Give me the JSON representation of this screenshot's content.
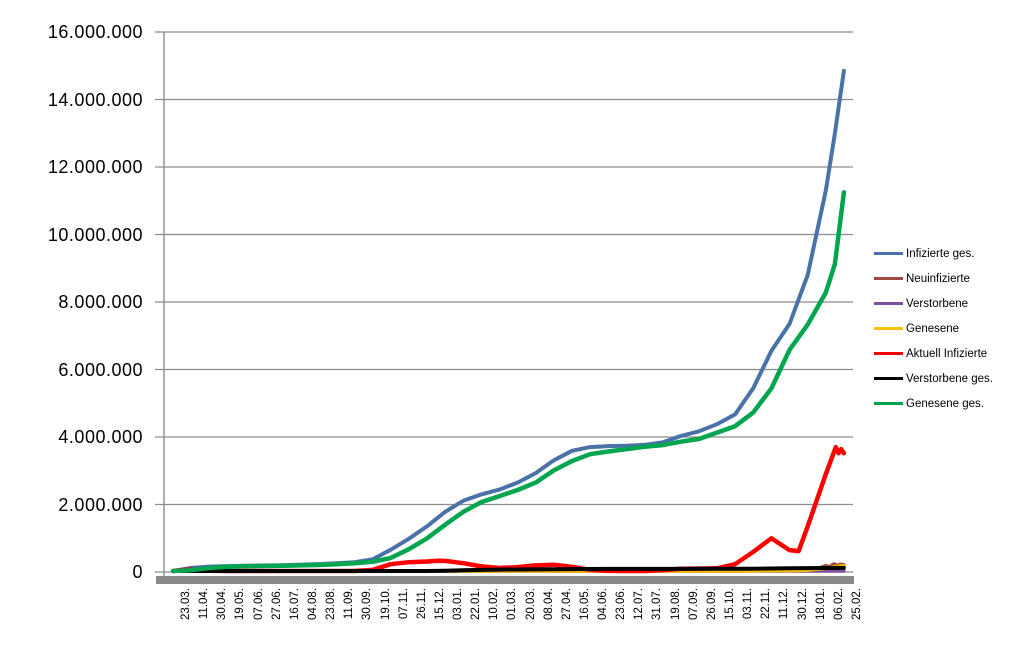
{
  "chart_data": {
    "type": "line",
    "title": "",
    "xlabel": "",
    "ylabel": "",
    "grid": true,
    "legend_position": "right",
    "ymax": 16000000,
    "ystep": 2000000,
    "y_tick_labels": [
      "16.000.000",
      "14.000.000",
      "12.000.000",
      "10.000.000",
      "8.000.000",
      "6.000.000",
      "4.000.000",
      "2.000.000",
      "0"
    ],
    "categories": [
      "23.03.",
      "11.04.",
      "30.04.",
      "19.05.",
      "07.06.",
      "27.06.",
      "16.07.",
      "04.08.",
      "23.08.",
      "11.09.",
      "30.09.",
      "19.10.",
      "07.11.",
      "26.11.",
      "15.12.",
      "03.01.",
      "22.01.",
      "10.02.",
      "01.03.",
      "20.03.",
      "08.04.",
      "27.04.",
      "16.05.",
      "04.06.",
      "23.06.",
      "12.07.",
      "31.07.",
      "19.08.",
      "07.09.",
      "26.09.",
      "15.10.",
      "03.11.",
      "22.11.",
      "11.12.",
      "30.12.",
      "18.01.",
      "06.02.",
      "25.02."
    ],
    "series": [
      {
        "name": "Infizierte ges.",
        "color": "#4A72A8",
        "points": [
          [
            0,
            29000
          ],
          [
            1,
            122000
          ],
          [
            2,
            161000
          ],
          [
            3,
            176000
          ],
          [
            4,
            185000
          ],
          [
            5,
            194000
          ],
          [
            6,
            201000
          ],
          [
            7,
            212000
          ],
          [
            8,
            233000
          ],
          [
            9,
            259000
          ],
          [
            10,
            290000
          ],
          [
            11,
            373000
          ],
          [
            12,
            658000
          ],
          [
            13,
            983000
          ],
          [
            14,
            1350000
          ],
          [
            15,
            1780000
          ],
          [
            16,
            2110000
          ],
          [
            17,
            2300000
          ],
          [
            18,
            2440000
          ],
          [
            19,
            2650000
          ],
          [
            20,
            2930000
          ],
          [
            21,
            3310000
          ],
          [
            22,
            3590000
          ],
          [
            23,
            3700000
          ],
          [
            24,
            3730000
          ],
          [
            25,
            3740000
          ],
          [
            26,
            3770000
          ],
          [
            27,
            3840000
          ],
          [
            28,
            4030000
          ],
          [
            29,
            4170000
          ],
          [
            30,
            4380000
          ],
          [
            31,
            4670000
          ],
          [
            32,
            5450000
          ],
          [
            33,
            6550000
          ],
          [
            34,
            7350000
          ],
          [
            35,
            8800000
          ],
          [
            36,
            11300000
          ],
          [
            36.5,
            13000000
          ],
          [
            37,
            14850000
          ]
        ]
      },
      {
        "name": "Neuinfizierte",
        "color": "#9E4B44",
        "points": [
          [
            0,
            4000
          ],
          [
            1,
            4100
          ],
          [
            2,
            1500
          ],
          [
            3,
            600
          ],
          [
            4,
            300
          ],
          [
            5,
            600
          ],
          [
            6,
            400
          ],
          [
            7,
            900
          ],
          [
            8,
            800
          ],
          [
            9,
            1400
          ],
          [
            10,
            1900
          ],
          [
            11,
            7800
          ],
          [
            12,
            23000
          ],
          [
            13,
            22800
          ],
          [
            14,
            27700
          ],
          [
            15,
            10300
          ],
          [
            16,
            16400
          ],
          [
            17,
            8100
          ],
          [
            18,
            5600
          ],
          [
            19,
            13700
          ],
          [
            20,
            20400
          ],
          [
            21,
            21000
          ],
          [
            22,
            8500
          ],
          [
            23,
            3200
          ],
          [
            24,
            1000
          ],
          [
            25,
            650
          ],
          [
            26,
            2100
          ],
          [
            27,
            5600
          ],
          [
            28,
            6700
          ],
          [
            29,
            7300
          ],
          [
            30,
            11500
          ],
          [
            31,
            20400
          ],
          [
            32,
            45300
          ],
          [
            33,
            42000
          ],
          [
            34,
            40000
          ],
          [
            35,
            74000
          ],
          [
            35.5,
            92000
          ],
          [
            36,
            190000
          ],
          [
            36.2,
            150000
          ],
          [
            36.45,
            240000
          ],
          [
            36.65,
            190000
          ],
          [
            36.8,
            230000
          ],
          [
            37,
            216000
          ]
        ]
      },
      {
        "name": "Verstorbene",
        "color": "#7D50A0",
        "points": [
          [
            0,
            30
          ],
          [
            1,
            250
          ],
          [
            2,
            200
          ],
          [
            3,
            120
          ],
          [
            4,
            30
          ],
          [
            5,
            20
          ],
          [
            6,
            10
          ],
          [
            7,
            10
          ],
          [
            8,
            5
          ],
          [
            9,
            10
          ],
          [
            10,
            20
          ],
          [
            11,
            40
          ],
          [
            12,
            130
          ],
          [
            13,
            410
          ],
          [
            14,
            730
          ],
          [
            15,
            940
          ],
          [
            16,
            870
          ],
          [
            17,
            680
          ],
          [
            18,
            380
          ],
          [
            19,
            250
          ],
          [
            20,
            300
          ],
          [
            21,
            290
          ],
          [
            22,
            230
          ],
          [
            23,
            130
          ],
          [
            24,
            90
          ],
          [
            25,
            60
          ],
          [
            26,
            30
          ],
          [
            27,
            20
          ],
          [
            28,
            60
          ],
          [
            29,
            70
          ],
          [
            30,
            90
          ],
          [
            31,
            150
          ],
          [
            32,
            330
          ],
          [
            33,
            470
          ],
          [
            34,
            380
          ],
          [
            35,
            170
          ],
          [
            36,
            190
          ],
          [
            37,
            250
          ]
        ]
      },
      {
        "name": "Genesene",
        "color": "#FFC000",
        "points": [
          [
            0,
            2000
          ],
          [
            1,
            5000
          ],
          [
            2,
            3000
          ],
          [
            3,
            1000
          ],
          [
            4,
            400
          ],
          [
            5,
            500
          ],
          [
            6,
            400
          ],
          [
            7,
            700
          ],
          [
            8,
            800
          ],
          [
            9,
            1200
          ],
          [
            10,
            1500
          ],
          [
            11,
            4500
          ],
          [
            12,
            14000
          ],
          [
            13,
            22000
          ],
          [
            14,
            25000
          ],
          [
            15,
            17000
          ],
          [
            16,
            17000
          ],
          [
            17,
            11000
          ],
          [
            18,
            6000
          ],
          [
            19,
            9000
          ],
          [
            20,
            16000
          ],
          [
            21,
            21000
          ],
          [
            22,
            14000
          ],
          [
            23,
            6000
          ],
          [
            24,
            2000
          ],
          [
            25,
            700
          ],
          [
            26,
            1200
          ],
          [
            27,
            4000
          ],
          [
            28,
            6500
          ],
          [
            29,
            7000
          ],
          [
            30,
            9500
          ],
          [
            31,
            15000
          ],
          [
            32,
            30000
          ],
          [
            33,
            44000
          ],
          [
            34,
            41000
          ],
          [
            35,
            55000
          ],
          [
            36,
            110000
          ],
          [
            36.5,
            150000
          ],
          [
            37,
            190000
          ]
        ]
      },
      {
        "name": "Aktuell Infizierte",
        "color": "#FF0000",
        "points": [
          [
            0,
            25000
          ],
          [
            0.7,
            68000
          ],
          [
            1,
            66000
          ],
          [
            2,
            35000
          ],
          [
            3,
            13000
          ],
          [
            4,
            8000
          ],
          [
            5,
            8000
          ],
          [
            6,
            4000
          ],
          [
            7,
            7000
          ],
          [
            8,
            16000
          ],
          [
            9,
            19000
          ],
          [
            10,
            23000
          ],
          [
            11,
            61000
          ],
          [
            12,
            232000
          ],
          [
            13,
            291000
          ],
          [
            14,
            310000
          ],
          [
            14.6,
            335000
          ],
          [
            15,
            330000
          ],
          [
            16,
            260000
          ],
          [
            17,
            167000
          ],
          [
            18,
            120000
          ],
          [
            19,
            145000
          ],
          [
            20,
            195000
          ],
          [
            21,
            215000
          ],
          [
            22,
            150000
          ],
          [
            23,
            65000
          ],
          [
            24,
            32000
          ],
          [
            25,
            15000
          ],
          [
            26,
            26000
          ],
          [
            27,
            56000
          ],
          [
            28,
            95000
          ],
          [
            29,
            100000
          ],
          [
            30,
            110000
          ],
          [
            31,
            230000
          ],
          [
            32,
            600000
          ],
          [
            33,
            1000000
          ],
          [
            33.5,
            820000
          ],
          [
            34,
            650000
          ],
          [
            34.5,
            620000
          ],
          [
            35,
            1350000
          ],
          [
            36,
            2900000
          ],
          [
            36.55,
            3700000
          ],
          [
            36.7,
            3520000
          ],
          [
            36.85,
            3640000
          ],
          [
            37,
            3520000
          ]
        ]
      },
      {
        "name": "Verstorbene ges.",
        "color": "#000000",
        "points": [
          [
            0,
            200
          ],
          [
            1,
            2800
          ],
          [
            2,
            6500
          ],
          [
            3,
            8100
          ],
          [
            4,
            8700
          ],
          [
            5,
            8960
          ],
          [
            6,
            9100
          ],
          [
            7,
            9200
          ],
          [
            8,
            9280
          ],
          [
            9,
            9350
          ],
          [
            10,
            9500
          ],
          [
            11,
            9800
          ],
          [
            12,
            11200
          ],
          [
            13,
            15000
          ],
          [
            14,
            23500
          ],
          [
            15,
            34500
          ],
          [
            16,
            50700
          ],
          [
            17,
            63000
          ],
          [
            18,
            70500
          ],
          [
            19,
            74700
          ],
          [
            20,
            77700
          ],
          [
            21,
            82300
          ],
          [
            22,
            86100
          ],
          [
            23,
            89200
          ],
          [
            24,
            90400
          ],
          [
            25,
            91300
          ],
          [
            26,
            91700
          ],
          [
            27,
            92000
          ],
          [
            28,
            92400
          ],
          [
            29,
            93400
          ],
          [
            30,
            94600
          ],
          [
            31,
            96000
          ],
          [
            32,
            99000
          ],
          [
            33,
            105000
          ],
          [
            34,
            111600
          ],
          [
            35,
            115900
          ],
          [
            36,
            118700
          ],
          [
            37,
            122000
          ]
        ]
      },
      {
        "name": "Genesene ges.",
        "color": "#00A550",
        "points": [
          [
            0,
            4000
          ],
          [
            1,
            53000
          ],
          [
            2,
            120000
          ],
          [
            3,
            155000
          ],
          [
            4,
            168000
          ],
          [
            5,
            177000
          ],
          [
            6,
            188000
          ],
          [
            7,
            196000
          ],
          [
            8,
            208000
          ],
          [
            9,
            231000
          ],
          [
            10,
            258000
          ],
          [
            11,
            303000
          ],
          [
            12,
            415000
          ],
          [
            13,
            677000
          ],
          [
            14,
            996000
          ],
          [
            15,
            1400000
          ],
          [
            16,
            1780000
          ],
          [
            17,
            2070000
          ],
          [
            18,
            2250000
          ],
          [
            19,
            2430000
          ],
          [
            20,
            2650000
          ],
          [
            21,
            3010000
          ],
          [
            22,
            3290000
          ],
          [
            23,
            3490000
          ],
          [
            24,
            3570000
          ],
          [
            25,
            3640000
          ],
          [
            26,
            3710000
          ],
          [
            27,
            3760000
          ],
          [
            28,
            3860000
          ],
          [
            29,
            3940000
          ],
          [
            30,
            4130000
          ],
          [
            31,
            4320000
          ],
          [
            32,
            4730000
          ],
          [
            33,
            5440000
          ],
          [
            34,
            6580000
          ],
          [
            35,
            7330000
          ],
          [
            36,
            8280000
          ],
          [
            36.5,
            9130000
          ],
          [
            37,
            11250000
          ]
        ]
      }
    ]
  },
  "colors": {
    "gridline": "#8C8C8C",
    "axis": "#8C8C8C",
    "baseline_band": "#898989",
    "background": "#FFFFFF"
  }
}
